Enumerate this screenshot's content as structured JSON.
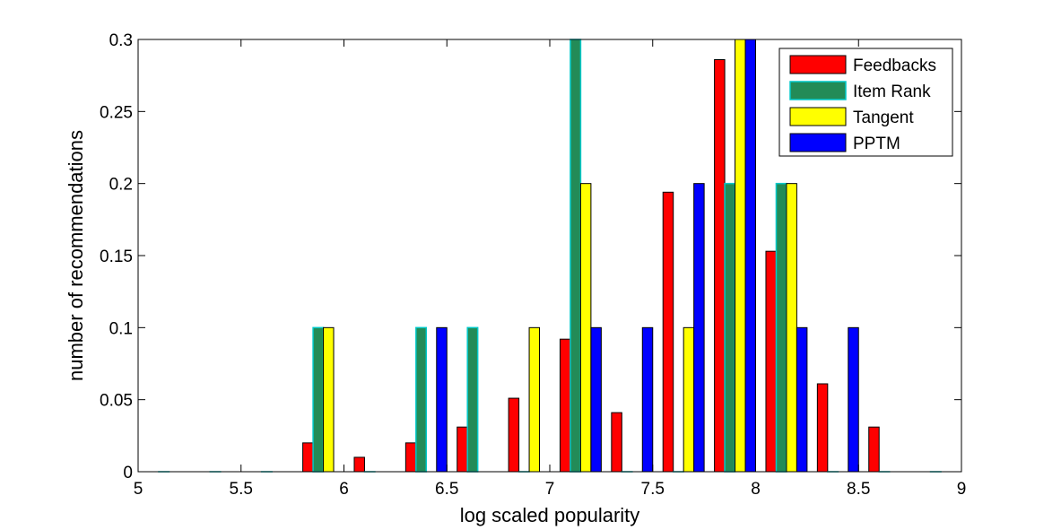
{
  "chart_data": {
    "type": "bar",
    "xlabel": "log scaled popularity",
    "ylabel": "number of recommendations",
    "xlim": [
      5,
      9
    ],
    "ylim": [
      0,
      0.3
    ],
    "xticks": [
      "5",
      "5.5",
      "6",
      "6.5",
      "7",
      "7.5",
      "8",
      "8.5",
      "9"
    ],
    "yticks": [
      "0",
      "0.05",
      "0.1",
      "0.15",
      "0.2",
      "0.25",
      "0.3"
    ],
    "legend_position": "top-right",
    "bin_centers": [
      5.15,
      5.4,
      5.65,
      5.9,
      6.15,
      6.4,
      6.65,
      6.9,
      7.15,
      7.4,
      7.65,
      7.9,
      8.15,
      8.4,
      8.65,
      8.9
    ],
    "series": [
      {
        "name": "Feedbacks",
        "color": "#ff0000",
        "values": [
          0,
          0,
          0,
          0.02,
          0.01,
          0.02,
          0.031,
          0.051,
          0.092,
          0.041,
          0.194,
          0.286,
          0.153,
          0.061,
          0.031,
          0
        ]
      },
      {
        "name": "Item Rank",
        "color": "#238b57",
        "edge": "#00c8c8",
        "values": [
          0,
          0,
          0,
          0.1,
          0,
          0.1,
          0.1,
          0,
          0.3,
          0,
          0,
          0.2,
          0.2,
          0,
          0,
          0
        ]
      },
      {
        "name": "Tangent",
        "color": "#ffff00",
        "values": [
          0,
          0,
          0,
          0.1,
          0,
          0,
          0,
          0.1,
          0.2,
          0,
          0.1,
          0.3,
          0.2,
          0,
          0,
          0
        ]
      },
      {
        "name": "PPTM",
        "color": "#0000ff",
        "values": [
          0,
          0,
          0,
          0,
          0,
          0.1,
          0,
          0,
          0.1,
          0.1,
          0.2,
          0.3,
          0.1,
          0.1,
          0,
          0
        ]
      }
    ]
  }
}
